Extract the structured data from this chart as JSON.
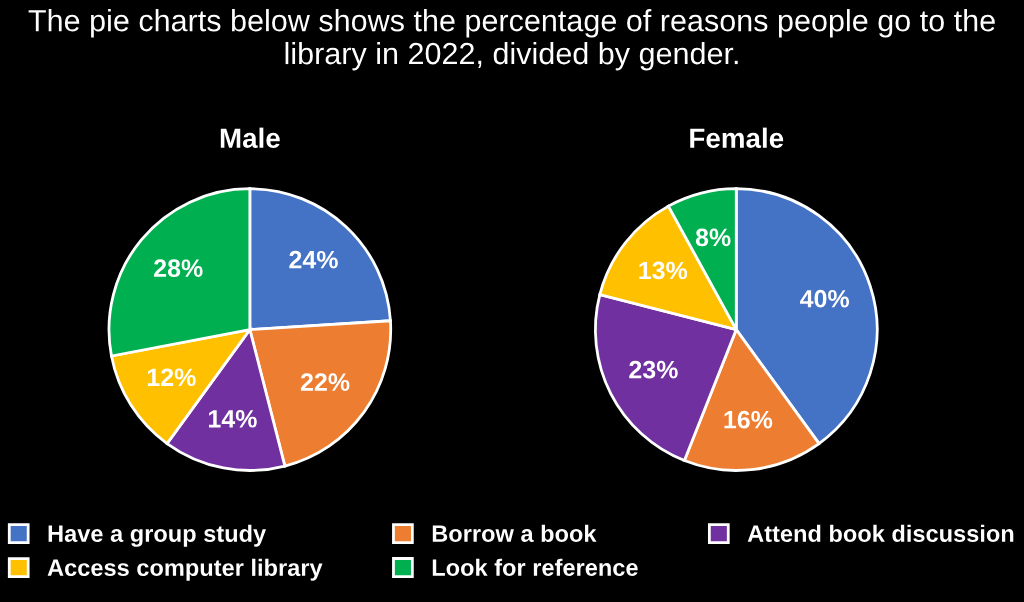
{
  "chart_data": [
    {
      "type": "pie",
      "title": "Male",
      "annotations": [
        "The pie charts below shows the percentage of reasons people go to the library in 2022, divided by gender."
      ],
      "categories": [
        "Have a group study",
        "Borrow a book",
        "Attend book discussion",
        "Access computer library",
        "Look for reference"
      ],
      "values": [
        24,
        22,
        14,
        12,
        28
      ],
      "value_labels": [
        "24%",
        "22%",
        "14%",
        "12%",
        "28%"
      ],
      "colors": [
        "#4472c4",
        "#ed7d31",
        "#7030a0",
        "#ffc000",
        "#00b050"
      ],
      "legend": "bottom"
    },
    {
      "type": "pie",
      "title": "Female",
      "categories": [
        null,
        null,
        null,
        null,
        null
      ],
      "values": [
        40,
        16,
        23,
        13,
        8
      ],
      "value_labels": [
        "40%",
        "16%",
        "23%",
        "13%",
        "8%"
      ],
      "colors": [
        "#4472c4",
        "#ed7d31",
        "#7030a0",
        "#ffc000",
        "#00b050"
      ]
    }
  ]
}
